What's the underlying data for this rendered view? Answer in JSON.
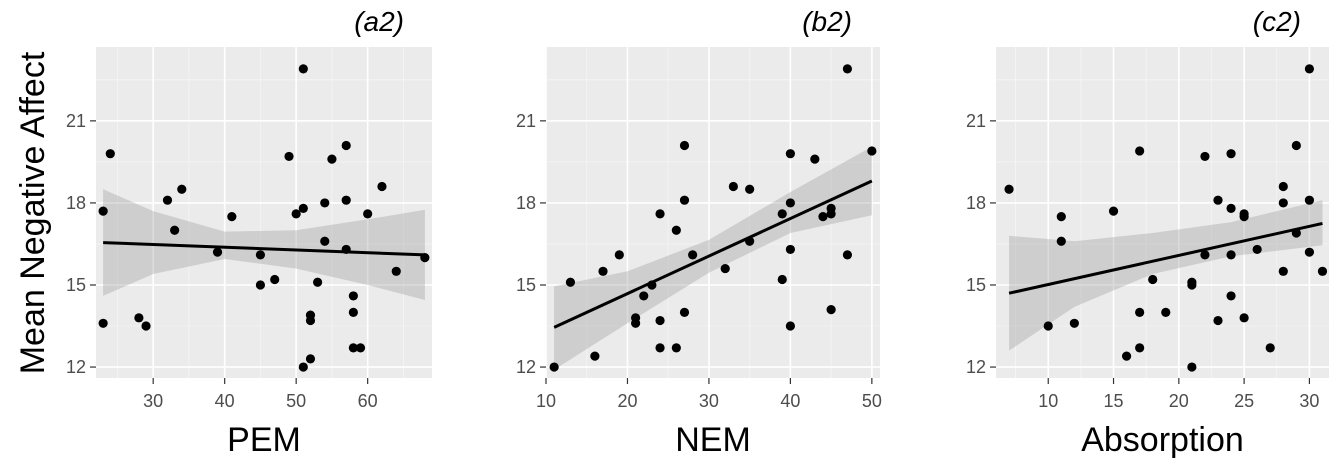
{
  "figure": {
    "ylabel": "Mean Negative Affect"
  },
  "chart_data": [
    {
      "type": "scatter",
      "panel_label": "(a2)",
      "xlabel": "PEM",
      "ylabel": "Mean Negative Affect",
      "xlim": [
        22,
        69
      ],
      "ylim": [
        11.6,
        23.7
      ],
      "xticks": [
        30,
        40,
        50,
        60,
        70
      ],
      "yticks": [
        12,
        15,
        18,
        21
      ],
      "grid": true,
      "x": [
        23,
        23,
        24,
        28,
        29,
        32,
        33,
        34,
        39,
        41,
        45,
        45,
        47,
        49,
        50,
        51,
        51,
        51,
        52,
        52,
        52,
        53,
        54,
        54,
        55,
        57,
        57,
        57,
        58,
        58,
        58,
        59,
        60,
        62,
        64,
        68
      ],
      "y": [
        17.7,
        13.6,
        19.8,
        13.8,
        13.5,
        18.1,
        17.0,
        18.5,
        16.2,
        17.5,
        16.1,
        15.0,
        15.2,
        19.7,
        17.6,
        17.8,
        22.9,
        12.0,
        13.9,
        13.7,
        12.3,
        15.1,
        16.6,
        18.0,
        19.6,
        20.1,
        18.1,
        16.3,
        14.6,
        14.0,
        12.7,
        12.7,
        17.6,
        18.6,
        15.5,
        16.0
      ],
      "fit_line": {
        "x": [
          23,
          68
        ],
        "y": [
          16.55,
          16.1
        ]
      },
      "confidence_band": {
        "x": [
          23,
          30,
          40,
          50,
          60,
          68
        ],
        "lower": [
          14.6,
          15.4,
          15.95,
          15.6,
          15.0,
          14.45
        ],
        "upper": [
          18.5,
          17.7,
          16.95,
          17.0,
          17.4,
          17.75
        ]
      }
    },
    {
      "type": "scatter",
      "panel_label": "(b2)",
      "xlabel": "NEM",
      "ylabel": "",
      "xlim": [
        10,
        51
      ],
      "ylim": [
        11.6,
        23.7
      ],
      "xticks": [
        10,
        20,
        30,
        40,
        50
      ],
      "yticks": [
        12,
        15,
        18,
        21
      ],
      "grid": true,
      "x": [
        11,
        13,
        16,
        17,
        19,
        21,
        21,
        22,
        23,
        24,
        24,
        24,
        26,
        26,
        27,
        27,
        27,
        28,
        32,
        33,
        35,
        35,
        39,
        39,
        40,
        40,
        40,
        40,
        43,
        44,
        45,
        45,
        45,
        47,
        47,
        50
      ],
      "y": [
        12.0,
        15.1,
        12.4,
        15.5,
        16.1,
        13.8,
        13.6,
        14.6,
        15.0,
        17.6,
        13.7,
        12.7,
        17.0,
        12.7,
        20.1,
        18.1,
        14.0,
        16.1,
        15.6,
        18.6,
        18.5,
        16.6,
        15.2,
        17.6,
        19.8,
        18.0,
        16.3,
        13.5,
        19.6,
        17.5,
        17.6,
        17.8,
        14.1,
        22.9,
        16.1,
        19.9
      ],
      "fit_line": {
        "x": [
          11,
          50
        ],
        "y": [
          13.45,
          18.8
        ]
      },
      "confidence_band": {
        "x": [
          11,
          20,
          30,
          40,
          50
        ],
        "lower": [
          11.9,
          13.6,
          15.45,
          16.9,
          17.55
        ],
        "upper": [
          14.95,
          15.5,
          16.65,
          18.4,
          20.05
        ]
      }
    },
    {
      "type": "scatter",
      "panel_label": "(c2)",
      "xlabel": "Absorption",
      "ylabel": "",
      "xlim": [
        6,
        31.5
      ],
      "ylim": [
        11.6,
        23.7
      ],
      "xticks": [
        10,
        15,
        20,
        25,
        30
      ],
      "yticks": [
        12,
        15,
        18,
        21
      ],
      "grid": true,
      "x": [
        7,
        10,
        11,
        11,
        12,
        15,
        16,
        17,
        17,
        17,
        18,
        19,
        21,
        21,
        21,
        22,
        22,
        23,
        23,
        24,
        24,
        24,
        24,
        25,
        25,
        25,
        26,
        27,
        28,
        28,
        28,
        29,
        29,
        30,
        30,
        30,
        31
      ],
      "y": [
        18.5,
        13.5,
        17.5,
        16.6,
        13.6,
        17.7,
        12.4,
        19.9,
        14.0,
        12.7,
        15.2,
        14.0,
        15.0,
        15.1,
        12.0,
        19.7,
        16.1,
        18.1,
        13.7,
        19.8,
        17.8,
        16.1,
        14.6,
        17.5,
        17.6,
        13.8,
        16.3,
        12.7,
        18.6,
        18.0,
        15.5,
        20.1,
        16.9,
        22.9,
        18.1,
        16.2,
        15.5
      ],
      "fit_line": {
        "x": [
          7,
          31
        ],
        "y": [
          14.7,
          17.25
        ]
      },
      "confidence_band": {
        "x": [
          7,
          12,
          18,
          24,
          31
        ],
        "lower": [
          12.6,
          14.2,
          15.4,
          16.05,
          16.45
        ],
        "upper": [
          16.8,
          16.6,
          16.9,
          17.3,
          18.1
        ]
      }
    }
  ]
}
